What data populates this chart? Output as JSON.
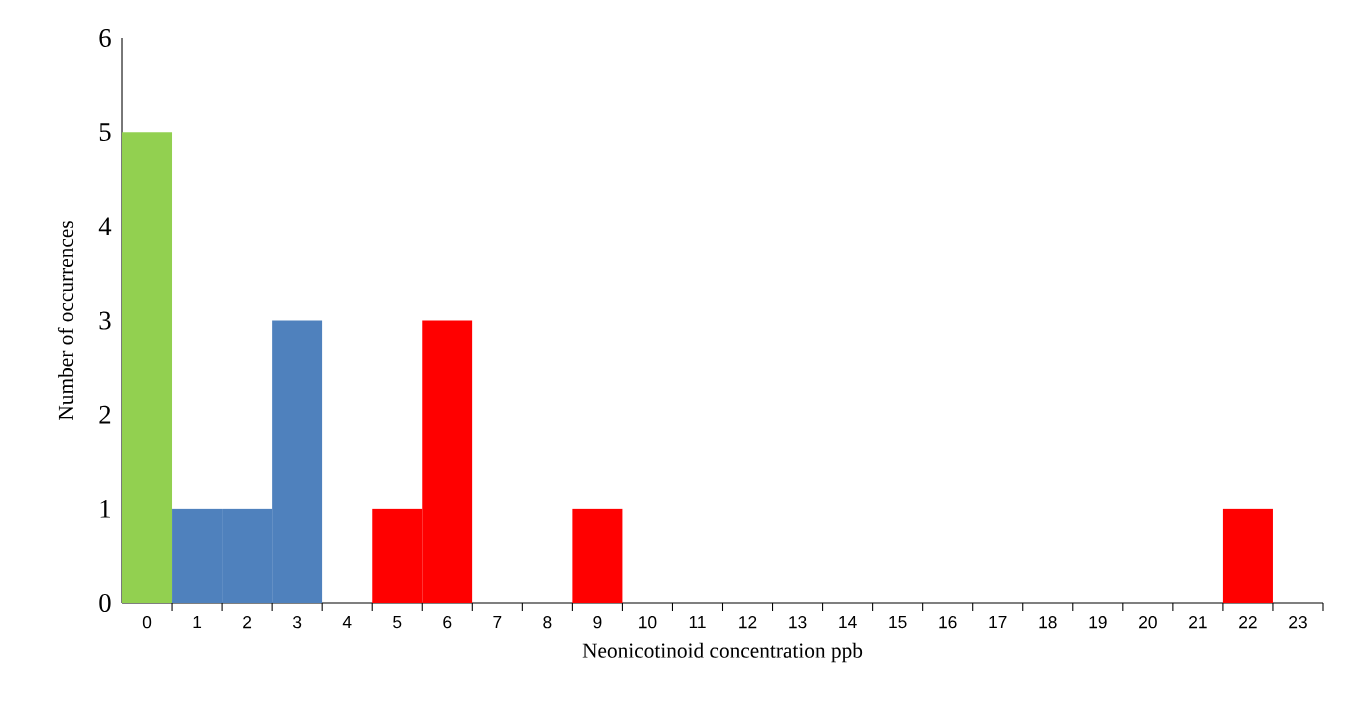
{
  "chart_data": {
    "type": "bar",
    "xlabel": "Neonicotinoid concentration ppb",
    "ylabel": "Number of occurrences",
    "categories": [
      "0",
      "1",
      "2",
      "3",
      "4",
      "5",
      "6",
      "7",
      "8",
      "9",
      "10",
      "11",
      "12",
      "13",
      "14",
      "15",
      "16",
      "17",
      "18",
      "19",
      "20",
      "21",
      "22",
      "23"
    ],
    "values": [
      5,
      1,
      1,
      3,
      0,
      1,
      3,
      0,
      0,
      1,
      0,
      0,
      0,
      0,
      0,
      0,
      0,
      0,
      0,
      0,
      0,
      0,
      1,
      0
    ],
    "colors": [
      "#92d050",
      "#4f81bd",
      "#4f81bd",
      "#4f81bd",
      "#ff0000",
      "#ff0000",
      "#ff0000",
      "#ff0000",
      "#ff0000",
      "#ff0000",
      "#ff0000",
      "#ff0000",
      "#ff0000",
      "#ff0000",
      "#ff0000",
      "#ff0000",
      "#ff0000",
      "#ff0000",
      "#ff0000",
      "#ff0000",
      "#ff0000",
      "#ff0000",
      "#ff0000",
      "#ff0000"
    ],
    "ylim": [
      0,
      6
    ],
    "yticks": [
      0,
      1,
      2,
      3,
      4,
      5,
      6
    ]
  }
}
